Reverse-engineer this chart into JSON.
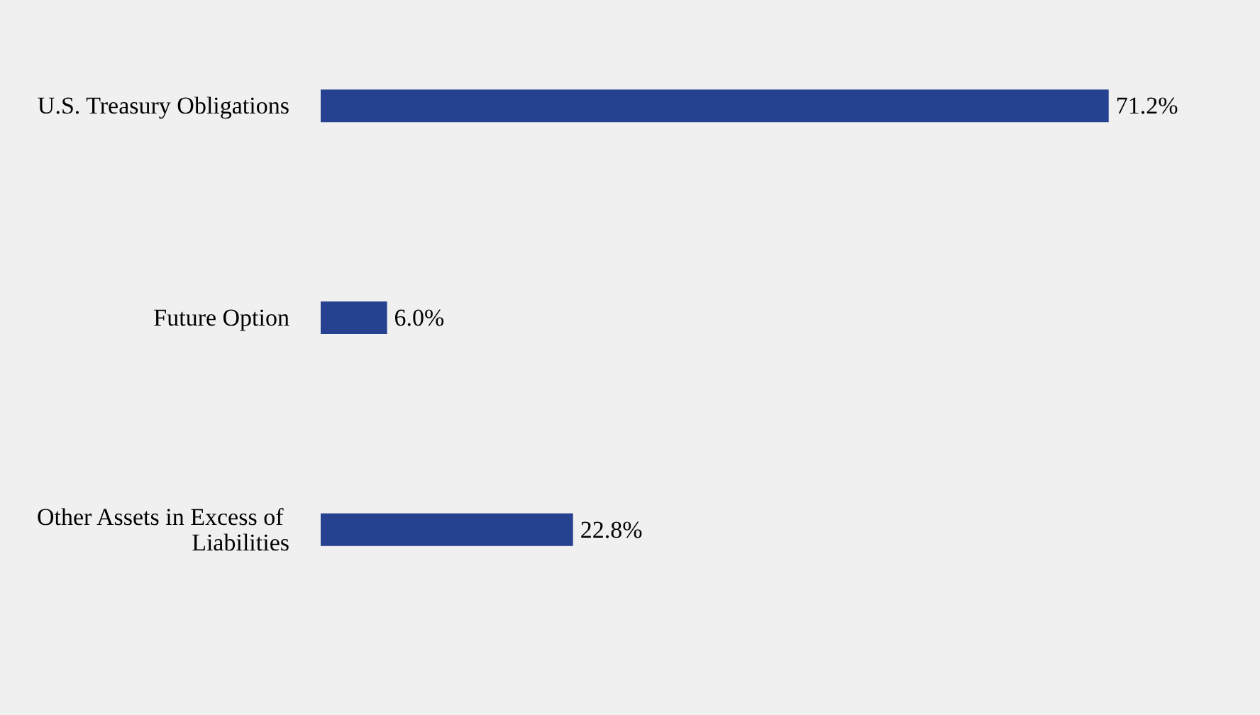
{
  "chart_data": {
    "type": "bar",
    "orientation": "horizontal",
    "categories": [
      "U.S. Treasury Obligations",
      "Future Option",
      "Other Assets in Excess of Liabilities"
    ],
    "values": [
      71.2,
      6.0,
      22.8
    ],
    "color": "#26418f",
    "value_labels": [
      "71.2%",
      "6.0%",
      "22.8%"
    ]
  }
}
